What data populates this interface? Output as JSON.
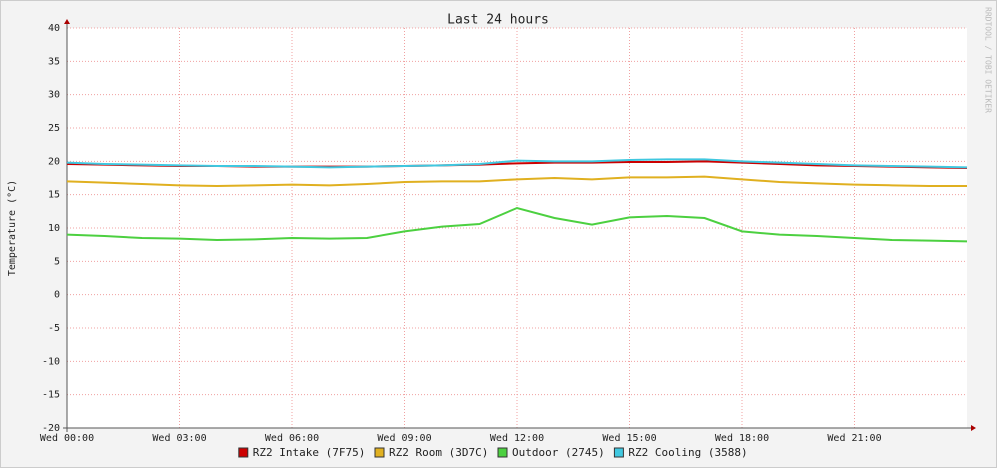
{
  "chart_data": {
    "type": "line",
    "title": "Last 24 hours",
    "ylabel": "Temperature (°C)",
    "watermark": "RRDTOOL / TOBI OETIKER",
    "x": [
      0,
      1,
      2,
      3,
      4,
      5,
      6,
      7,
      8,
      9,
      10,
      11,
      12,
      13,
      14,
      15,
      16,
      17,
      18,
      19,
      20,
      21,
      22,
      23,
      24
    ],
    "xlim": [
      0,
      24
    ],
    "xticks": [
      {
        "value": 0,
        "label": "Wed 00:00"
      },
      {
        "value": 3,
        "label": "Wed 03:00"
      },
      {
        "value": 6,
        "label": "Wed 06:00"
      },
      {
        "value": 9,
        "label": "Wed 09:00"
      },
      {
        "value": 12,
        "label": "Wed 12:00"
      },
      {
        "value": 15,
        "label": "Wed 15:00"
      },
      {
        "value": 18,
        "label": "Wed 18:00"
      },
      {
        "value": 21,
        "label": "Wed 21:00"
      }
    ],
    "ylim": [
      -20,
      40
    ],
    "yticks": [
      -20,
      -15,
      -10,
      -5,
      0,
      5,
      10,
      15,
      20,
      25,
      30,
      35,
      40
    ],
    "grid": true,
    "series": [
      {
        "name": "RZ2 Intake (7F75)",
        "color": "#cc0000",
        "values": [
          19.6,
          19.5,
          19.4,
          19.3,
          19.3,
          19.2,
          19.2,
          19.2,
          19.2,
          19.3,
          19.4,
          19.5,
          19.7,
          19.8,
          19.8,
          19.9,
          19.9,
          20.0,
          19.8,
          19.6,
          19.4,
          19.3,
          19.2,
          19.1,
          19.0
        ]
      },
      {
        "name": "RZ2 Room (3D7C)",
        "color": "#e0b020",
        "values": [
          17.0,
          16.8,
          16.6,
          16.4,
          16.3,
          16.4,
          16.5,
          16.4,
          16.6,
          16.9,
          17.0,
          17.0,
          17.3,
          17.5,
          17.3,
          17.6,
          17.6,
          17.7,
          17.3,
          16.9,
          16.7,
          16.5,
          16.4,
          16.3,
          16.3
        ]
      },
      {
        "name": "Outdoor (2745)",
        "color": "#4cd040",
        "values": [
          9.0,
          8.8,
          8.5,
          8.4,
          8.2,
          8.3,
          8.5,
          8.4,
          8.5,
          9.5,
          10.2,
          10.6,
          13.0,
          11.5,
          10.5,
          11.6,
          11.8,
          11.5,
          9.5,
          9.0,
          8.8,
          8.5,
          8.2,
          8.1,
          8.0
        ]
      },
      {
        "name": "RZ2 Cooling (3588)",
        "color": "#40c8e0",
        "values": [
          19.8,
          19.6,
          19.5,
          19.4,
          19.3,
          19.3,
          19.2,
          19.1,
          19.2,
          19.3,
          19.4,
          19.6,
          20.1,
          20.0,
          20.0,
          20.2,
          20.3,
          20.3,
          20.0,
          19.8,
          19.6,
          19.4,
          19.3,
          19.2,
          19.1
        ]
      }
    ]
  }
}
